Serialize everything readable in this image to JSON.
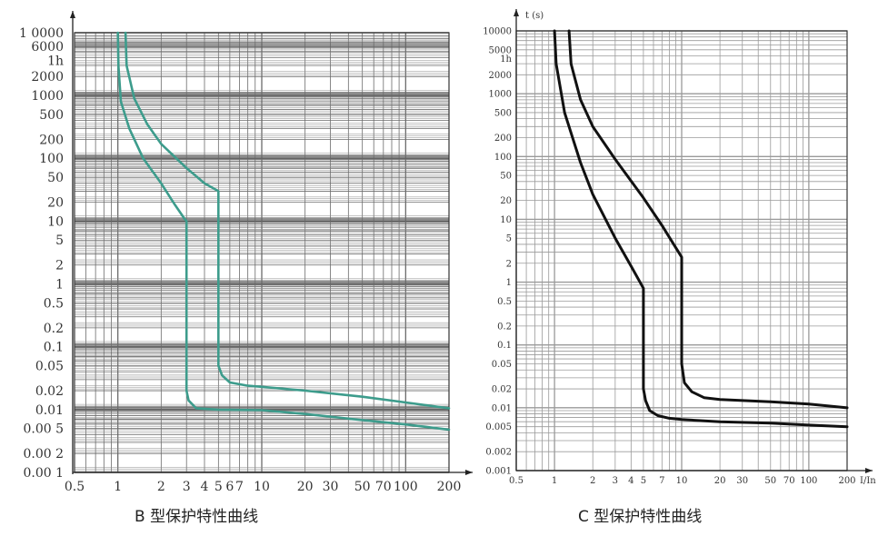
{
  "captions": {
    "b": "B 型保护特性曲线",
    "c": "C 型保护特性曲线"
  },
  "chart_data": [
    {
      "type": "line",
      "title": "B 型保护特性曲线",
      "xscale": "log",
      "yscale": "log",
      "xlim": [
        0.5,
        200
      ],
      "ylim": [
        0.001,
        10000
      ],
      "grid": true,
      "xticks": [
        {
          "v": 0.5,
          "label": "0.5"
        },
        {
          "v": 1,
          "label": "1"
        },
        {
          "v": 2,
          "label": "2"
        },
        {
          "v": 3,
          "label": "3"
        },
        {
          "v": 4,
          "label": "4"
        },
        {
          "v": 5,
          "label": "5"
        },
        {
          "v": 6,
          "label": "6"
        },
        {
          "v": 7,
          "label": "7"
        },
        {
          "v": 10,
          "label": "10"
        },
        {
          "v": 20,
          "label": "20"
        },
        {
          "v": 30,
          "label": "30"
        },
        {
          "v": 50,
          "label": "50"
        },
        {
          "v": 70,
          "label": "70"
        },
        {
          "v": 100,
          "label": "100"
        },
        {
          "v": 200,
          "label": "200"
        }
      ],
      "yticks": [
        {
          "v": 10000,
          "label": "1 0000"
        },
        {
          "v": 6000,
          "label": "6000"
        },
        {
          "v": 3600,
          "label": "1h"
        },
        {
          "v": 2000,
          "label": "2000"
        },
        {
          "v": 1000,
          "label": "1000"
        },
        {
          "v": 500,
          "label": "500"
        },
        {
          "v": 200,
          "label": "200"
        },
        {
          "v": 100,
          "label": "100"
        },
        {
          "v": 50,
          "label": "50"
        },
        {
          "v": 20,
          "label": "20"
        },
        {
          "v": 10,
          "label": "10"
        },
        {
          "v": 5,
          "label": "5"
        },
        {
          "v": 2,
          "label": "2"
        },
        {
          "v": 1,
          "label": "1"
        },
        {
          "v": 0.5,
          "label": "0.5"
        },
        {
          "v": 0.2,
          "label": "0.2"
        },
        {
          "v": 0.1,
          "label": "0.1"
        },
        {
          "v": 0.05,
          "label": "0.05"
        },
        {
          "v": 0.02,
          "label": "0.02"
        },
        {
          "v": 0.01,
          "label": "0.01"
        },
        {
          "v": 0.005,
          "label": "0.00 5"
        },
        {
          "v": 0.002,
          "label": "0.00 2"
        },
        {
          "v": 0.001,
          "label": "0.00 1"
        }
      ],
      "series": [
        {
          "color": "#3d9c8c",
          "points": [
            [
              1.0,
              10000
            ],
            [
              1.01,
              3000
            ],
            [
              1.05,
              800
            ],
            [
              1.2,
              300
            ],
            [
              1.5,
              100
            ],
            [
              2,
              40
            ],
            [
              2.5,
              18
            ],
            [
              2.9,
              11
            ],
            [
              3,
              10
            ],
            [
              3,
              0.02
            ],
            [
              3.1,
              0.014
            ],
            [
              3.5,
              0.0105
            ],
            [
              5,
              0.01
            ],
            [
              10,
              0.0098
            ],
            [
              20,
              0.0085
            ],
            [
              50,
              0.0068
            ],
            [
              100,
              0.0058
            ],
            [
              200,
              0.0048
            ]
          ]
        },
        {
          "color": "#3d9c8c",
          "points": [
            [
              1.13,
              10000
            ],
            [
              1.15,
              3000
            ],
            [
              1.3,
              900
            ],
            [
              1.6,
              350
            ],
            [
              2,
              170
            ],
            [
              3,
              70
            ],
            [
              4,
              40
            ],
            [
              5,
              30
            ],
            [
              5,
              0.05
            ],
            [
              5.3,
              0.035
            ],
            [
              6,
              0.027
            ],
            [
              8,
              0.024
            ],
            [
              10,
              0.023
            ],
            [
              20,
              0.02
            ],
            [
              50,
              0.016
            ],
            [
              100,
              0.013
            ],
            [
              200,
              0.0105
            ]
          ]
        }
      ]
    },
    {
      "type": "line",
      "title": "C 型保护特性曲线",
      "xscale": "log",
      "yscale": "log",
      "xlim": [
        0.5,
        200
      ],
      "ylim": [
        0.001,
        10000
      ],
      "xlabel": "I/In",
      "ylabel": "t (s)",
      "grid": true,
      "xticks": [
        {
          "v": 0.5,
          "label": "0.5"
        },
        {
          "v": 1,
          "label": "1"
        },
        {
          "v": 2,
          "label": "2"
        },
        {
          "v": 3,
          "label": "3"
        },
        {
          "v": 4,
          "label": "4"
        },
        {
          "v": 5,
          "label": "5"
        },
        {
          "v": 7,
          "label": "7"
        },
        {
          "v": 10,
          "label": "10"
        },
        {
          "v": 20,
          "label": "20"
        },
        {
          "v": 30,
          "label": "30"
        },
        {
          "v": 50,
          "label": "50"
        },
        {
          "v": 70,
          "label": "70"
        },
        {
          "v": 100,
          "label": "100"
        },
        {
          "v": 200,
          "label": "200"
        }
      ],
      "yticks": [
        {
          "v": 10000,
          "label": "10000"
        },
        {
          "v": 5000,
          "label": "5000"
        },
        {
          "v": 3600,
          "label": "1h"
        },
        {
          "v": 2000,
          "label": "2000"
        },
        {
          "v": 1000,
          "label": "1000"
        },
        {
          "v": 500,
          "label": "500"
        },
        {
          "v": 200,
          "label": "200"
        },
        {
          "v": 100,
          "label": "100"
        },
        {
          "v": 50,
          "label": "50"
        },
        {
          "v": 20,
          "label": "20"
        },
        {
          "v": 10,
          "label": "10"
        },
        {
          "v": 5,
          "label": "5"
        },
        {
          "v": 2,
          "label": "2"
        },
        {
          "v": 1,
          "label": "1"
        },
        {
          "v": 0.5,
          "label": "0.5"
        },
        {
          "v": 0.2,
          "label": "0.2"
        },
        {
          "v": 0.1,
          "label": "0.1"
        },
        {
          "v": 0.05,
          "label": "0.05"
        },
        {
          "v": 0.02,
          "label": "0.02"
        },
        {
          "v": 0.01,
          "label": "0.01"
        },
        {
          "v": 0.005,
          "label": "0.005"
        },
        {
          "v": 0.002,
          "label": "0.002"
        },
        {
          "v": 0.001,
          "label": "0.001"
        }
      ],
      "series": [
        {
          "color": "#111111",
          "points": [
            [
              1.0,
              10000
            ],
            [
              1.03,
              3000
            ],
            [
              1.2,
              500
            ],
            [
              1.6,
              80
            ],
            [
              2,
              25
            ],
            [
              3,
              5
            ],
            [
              4,
              1.8
            ],
            [
              5,
              0.8
            ],
            [
              5,
              0.02
            ],
            [
              5.2,
              0.013
            ],
            [
              5.6,
              0.009
            ],
            [
              6.5,
              0.0075
            ],
            [
              8,
              0.0068
            ],
            [
              10,
              0.0065
            ],
            [
              20,
              0.006
            ],
            [
              50,
              0.0057
            ],
            [
              100,
              0.0053
            ],
            [
              200,
              0.005
            ]
          ]
        },
        {
          "color": "#111111",
          "points": [
            [
              1.3,
              10000
            ],
            [
              1.35,
              3000
            ],
            [
              1.6,
              800
            ],
            [
              2,
              300
            ],
            [
              3,
              90
            ],
            [
              5,
              22
            ],
            [
              7,
              8
            ],
            [
              10,
              2.5
            ],
            [
              10,
              0.05
            ],
            [
              10.5,
              0.025
            ],
            [
              12,
              0.018
            ],
            [
              15,
              0.0145
            ],
            [
              20,
              0.0135
            ],
            [
              50,
              0.0125
            ],
            [
              100,
              0.0115
            ],
            [
              200,
              0.01
            ]
          ]
        }
      ]
    }
  ]
}
